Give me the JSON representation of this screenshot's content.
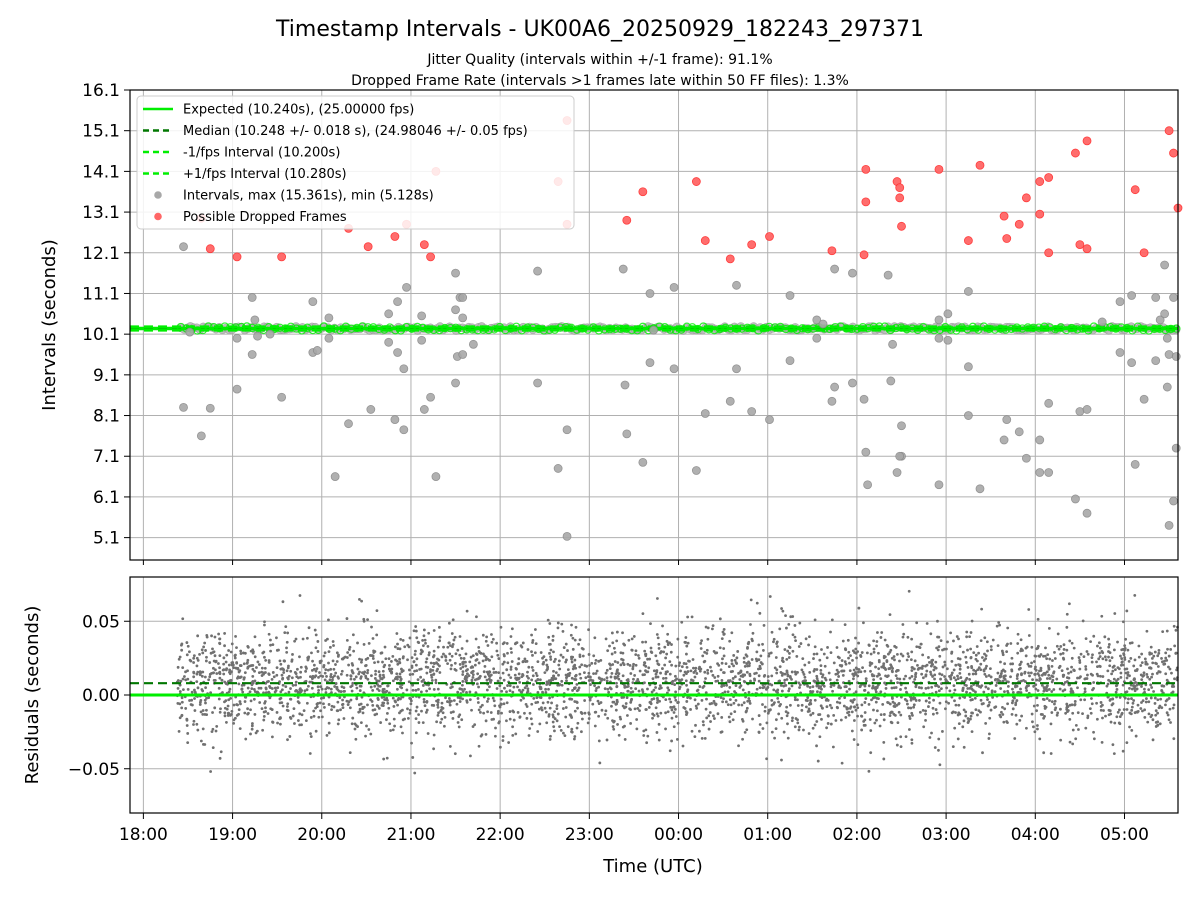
{
  "title": "Timestamp Intervals - UK00A6_20250929_182243_297371",
  "subtitle_1": "Jitter Quality (intervals within +/-1 frame): 91.1%",
  "subtitle_2": "Dropped Frame Rate (intervals >1 frames late within 50 FF files): 1.3%",
  "colors": {
    "expected": "#00ee00",
    "median": "#007700",
    "interval_gray": "#9a9a9a",
    "dropped_red": "#ff5555",
    "residual_gray": "#707070",
    "grid": "#b0b0b0"
  },
  "chart_data": [
    {
      "type": "scatter",
      "panel": "top",
      "xlabel": "",
      "ylabel": "Intervals (seconds)",
      "x_unit": "hours since 18:00 UTC (axis shows clock time)",
      "xlim": [
        -0.15,
        11.6
      ],
      "ylim": [
        4.55,
        16.1
      ],
      "yticks": [
        5.1,
        6.1,
        7.1,
        8.1,
        9.1,
        10.1,
        11.1,
        12.1,
        13.1,
        14.1,
        15.1,
        16.1
      ],
      "ytick_labels": [
        "5.1",
        "6.1",
        "7.1",
        "8.1",
        "9.1",
        "10.1",
        "11.1",
        "12.1",
        "13.1",
        "14.1",
        "15.1",
        "16.1"
      ],
      "xticks": [
        0,
        1,
        2,
        3,
        4,
        5,
        6,
        7,
        8,
        9,
        10,
        11
      ],
      "grid": true,
      "legend_position": "top-left",
      "legend": [
        "Expected (10.240s), (25.00000 fps)",
        "Median (10.248 +/- 0.018 s), (24.98046 +/- 0.05 fps)",
        "-1/fps Interval (10.200s)",
        "+1/fps Interval (10.280s)",
        "Intervals, max (15.361s), min (5.128s)",
        "Possible Dropped Frames"
      ],
      "lines": {
        "expected": 10.24,
        "median": 10.248,
        "minus_1fps": 10.2,
        "plus_1fps": 10.28
      },
      "series": [
        {
          "name": "Intervals, max (15.361s), min (5.128s)",
          "points": [
            [
              0.45,
              12.25
            ],
            [
              0.45,
              8.3
            ],
            [
              0.52,
              10.15
            ],
            [
              0.65,
              7.6
            ],
            [
              0.75,
              8.28
            ],
            [
              1.05,
              10.0
            ],
            [
              1.05,
              8.75
            ],
            [
              1.22,
              11.0
            ],
            [
              1.22,
              9.6
            ],
            [
              1.25,
              10.45
            ],
            [
              1.28,
              10.05
            ],
            [
              1.42,
              10.1
            ],
            [
              1.55,
              8.55
            ],
            [
              1.9,
              10.9
            ],
            [
              1.9,
              9.65
            ],
            [
              1.95,
              9.7
            ],
            [
              2.08,
              10.5
            ],
            [
              2.08,
              10.0
            ],
            [
              2.15,
              6.6
            ],
            [
              2.3,
              7.9
            ],
            [
              2.55,
              8.25
            ],
            [
              2.75,
              10.6
            ],
            [
              2.75,
              9.9
            ],
            [
              2.82,
              8.0
            ],
            [
              2.85,
              10.9
            ],
            [
              2.85,
              9.65
            ],
            [
              2.92,
              9.25
            ],
            [
              2.92,
              7.75
            ],
            [
              2.95,
              11.25
            ],
            [
              3.12,
              10.55
            ],
            [
              3.12,
              9.95
            ],
            [
              3.15,
              8.25
            ],
            [
              3.22,
              8.55
            ],
            [
              3.28,
              6.6
            ],
            [
              3.5,
              11.6
            ],
            [
              3.5,
              10.7
            ],
            [
              3.5,
              8.9
            ],
            [
              3.52,
              9.55
            ],
            [
              3.55,
              11.0
            ],
            [
              3.58,
              11.0
            ],
            [
              3.58,
              10.5
            ],
            [
              3.58,
              9.6
            ],
            [
              3.7,
              9.85
            ],
            [
              4.42,
              11.65
            ],
            [
              4.42,
              8.9
            ],
            [
              4.65,
              6.8
            ],
            [
              4.75,
              7.75
            ],
            [
              4.75,
              5.13
            ],
            [
              5.38,
              11.7
            ],
            [
              5.4,
              8.85
            ],
            [
              5.42,
              7.65
            ],
            [
              5.6,
              6.95
            ],
            [
              5.68,
              11.1
            ],
            [
              5.68,
              9.4
            ],
            [
              5.72,
              10.2
            ],
            [
              5.95,
              11.25
            ],
            [
              5.95,
              9.25
            ],
            [
              6.2,
              6.75
            ],
            [
              6.3,
              8.15
            ],
            [
              6.58,
              8.45
            ],
            [
              6.65,
              11.3
            ],
            [
              6.65,
              9.25
            ],
            [
              6.82,
              8.2
            ],
            [
              7.02,
              8.0
            ],
            [
              7.25,
              11.05
            ],
            [
              7.25,
              9.45
            ],
            [
              7.55,
              10.45
            ],
            [
              7.55,
              10.0
            ],
            [
              7.62,
              10.35
            ],
            [
              7.75,
              11.7
            ],
            [
              7.75,
              8.8
            ],
            [
              7.72,
              8.45
            ],
            [
              7.95,
              11.6
            ],
            [
              7.95,
              8.9
            ],
            [
              8.08,
              8.5
            ],
            [
              8.1,
              7.2
            ],
            [
              8.12,
              6.4
            ],
            [
              8.35,
              11.55
            ],
            [
              8.38,
              8.95
            ],
            [
              8.4,
              9.85
            ],
            [
              8.45,
              6.7
            ],
            [
              8.5,
              7.85
            ],
            [
              8.5,
              7.1
            ],
            [
              8.48,
              7.1
            ],
            [
              8.92,
              10.45
            ],
            [
              8.92,
              10.0
            ],
            [
              8.92,
              6.4
            ],
            [
              9.02,
              10.6
            ],
            [
              9.02,
              9.95
            ],
            [
              9.25,
              11.15
            ],
            [
              9.25,
              9.3
            ],
            [
              9.25,
              8.1
            ],
            [
              9.38,
              6.3
            ],
            [
              9.65,
              7.5
            ],
            [
              9.68,
              8.0
            ],
            [
              9.82,
              7.7
            ],
            [
              9.9,
              7.05
            ],
            [
              10.05,
              7.5
            ],
            [
              10.05,
              6.7
            ],
            [
              10.15,
              8.4
            ],
            [
              10.15,
              6.7
            ],
            [
              10.45,
              6.05
            ],
            [
              10.5,
              8.2
            ],
            [
              10.58,
              8.25
            ],
            [
              10.58,
              5.7
            ],
            [
              10.75,
              10.4
            ],
            [
              10.95,
              10.9
            ],
            [
              10.95,
              9.65
            ],
            [
              11.08,
              11.05
            ],
            [
              11.08,
              9.4
            ],
            [
              11.12,
              6.9
            ],
            [
              11.22,
              8.5
            ],
            [
              11.35,
              11.0
            ],
            [
              11.35,
              9.45
            ],
            [
              11.4,
              10.45
            ],
            [
              11.45,
              11.8
            ],
            [
              11.45,
              10.6
            ],
            [
              11.48,
              10.0
            ],
            [
              11.48,
              8.8
            ],
            [
              11.5,
              9.6
            ],
            [
              11.5,
              5.4
            ],
            [
              11.55,
              11.0
            ],
            [
              11.55,
              6.0
            ],
            [
              11.58,
              9.55
            ],
            [
              11.58,
              7.3
            ]
          ]
        },
        {
          "name": "Possible Dropped Frames",
          "points": [
            [
              0.65,
              12.95
            ],
            [
              0.75,
              12.2
            ],
            [
              1.05,
              12.0
            ],
            [
              1.55,
              12.0
            ],
            [
              2.3,
              12.7
            ],
            [
              2.52,
              12.25
            ],
            [
              2.82,
              12.5
            ],
            [
              2.95,
              12.8
            ],
            [
              3.15,
              12.3
            ],
            [
              3.22,
              12.0
            ],
            [
              3.28,
              14.1
            ],
            [
              4.65,
              13.85
            ],
            [
              4.75,
              15.35
            ],
            [
              4.75,
              12.8
            ],
            [
              5.42,
              12.9
            ],
            [
              5.6,
              13.6
            ],
            [
              6.2,
              13.85
            ],
            [
              6.3,
              12.4
            ],
            [
              6.58,
              11.95
            ],
            [
              6.82,
              12.3
            ],
            [
              7.02,
              12.5
            ],
            [
              7.72,
              12.15
            ],
            [
              8.1,
              14.15
            ],
            [
              8.1,
              13.35
            ],
            [
              8.08,
              12.05
            ],
            [
              8.45,
              13.85
            ],
            [
              8.48,
              13.7
            ],
            [
              8.48,
              13.45
            ],
            [
              8.5,
              12.75
            ],
            [
              8.92,
              14.15
            ],
            [
              9.25,
              12.4
            ],
            [
              9.38,
              14.25
            ],
            [
              9.65,
              13.0
            ],
            [
              9.68,
              12.45
            ],
            [
              9.82,
              12.8
            ],
            [
              9.9,
              13.45
            ],
            [
              10.05,
              13.85
            ],
            [
              10.05,
              13.05
            ],
            [
              10.15,
              13.95
            ],
            [
              10.15,
              12.1
            ],
            [
              10.45,
              14.55
            ],
            [
              10.5,
              12.3
            ],
            [
              10.58,
              14.85
            ],
            [
              10.58,
              12.2
            ],
            [
              11.12,
              13.65
            ],
            [
              11.22,
              12.1
            ],
            [
              11.5,
              15.1
            ],
            [
              11.55,
              14.55
            ],
            [
              11.6,
              13.2
            ]
          ]
        }
      ],
      "dense_band": {
        "name": "Intervals",
        "x_range": [
          0.42,
          11.6
        ],
        "y_center": 10.24,
        "y_spread": 0.05
      }
    },
    {
      "type": "scatter",
      "panel": "bottom",
      "xlabel": "Time (UTC)",
      "ylabel": "Residuals (seconds)",
      "xlim": [
        -0.15,
        11.6
      ],
      "ylim": [
        -0.08,
        0.08
      ],
      "yticks": [
        -0.05,
        0.0,
        0.05
      ],
      "ytick_labels": [
        "−0.05",
        "0.00",
        "0.05"
      ],
      "xticks": [
        0,
        1,
        2,
        3,
        4,
        5,
        6,
        7,
        8,
        9,
        10,
        11
      ],
      "xtick_labels": [
        "18:00",
        "19:00",
        "20:00",
        "21:00",
        "22:00",
        "23:00",
        "00:00",
        "01:00",
        "02:00",
        "03:00",
        "04:00",
        "05:00"
      ],
      "grid": true,
      "lines": {
        "zero": 0.0,
        "median_offset": 0.008
      },
      "residual_cloud": {
        "x_range": [
          0.38,
          11.6
        ],
        "mean": 0.008,
        "std": 0.018,
        "min": -0.066,
        "max": 0.071,
        "approx_count": 3900
      }
    }
  ]
}
